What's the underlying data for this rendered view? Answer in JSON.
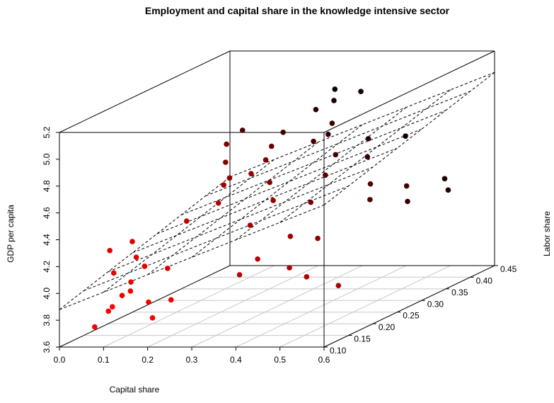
{
  "chart_data": {
    "type": "scatter3d",
    "title": "Employment and capital share in the knowledge intensive sector",
    "x_label": "Capital share",
    "y_label": "Labor share",
    "z_label": "GDP per capita",
    "x": [
      0.08,
      0.1,
      0.12,
      0.09,
      0.15,
      0.13,
      0.18,
      0.11,
      0.16,
      0.2,
      0.14,
      0.07,
      0.19,
      0.22,
      0.12,
      0.2,
      0.25,
      0.3,
      0.22,
      0.35,
      0.28,
      0.4,
      0.33,
      0.18,
      0.26,
      0.38,
      0.3,
      0.45,
      0.24,
      0.36,
      0.42,
      0.32,
      0.28,
      0.5,
      0.2,
      0.15,
      0.22,
      0.3,
      0.25,
      0.35,
      0.4,
      0.33,
      0.45,
      0.38,
      0.28,
      0.5,
      0.42,
      0.48,
      0.36,
      0.3,
      0.55,
      0.26,
      0.44,
      0.32,
      0.52
    ],
    "y": [
      0.1,
      0.11,
      0.12,
      0.13,
      0.11,
      0.14,
      0.12,
      0.15,
      0.13,
      0.11,
      0.12,
      0.14,
      0.15,
      0.13,
      0.1,
      0.18,
      0.2,
      0.22,
      0.25,
      0.19,
      0.27,
      0.21,
      0.24,
      0.28,
      0.3,
      0.23,
      0.26,
      0.2,
      0.22,
      0.29,
      0.25,
      0.18,
      0.24,
      0.22,
      0.26,
      0.34,
      0.36,
      0.38,
      0.4,
      0.35,
      0.37,
      0.42,
      0.33,
      0.39,
      0.41,
      0.36,
      0.43,
      0.38,
      0.32,
      0.35,
      0.4,
      0.43,
      0.34,
      0.37,
      0.42
    ],
    "z": [
      3.75,
      3.85,
      3.95,
      4.1,
      4.0,
      4.2,
      3.9,
      4.3,
      4.15,
      3.8,
      4.05,
      4.25,
      4.1,
      3.9,
      3.9,
      4.4,
      4.5,
      4.3,
      4.6,
      4.1,
      4.7,
      4.0,
      4.45,
      4.8,
      4.75,
      4.2,
      4.55,
      3.95,
      4.6,
      4.35,
      4.15,
      4.0,
      4.65,
      3.85,
      4.7,
      4.8,
      4.75,
      4.7,
      4.85,
      4.6,
      4.55,
      4.95,
      4.3,
      4.65,
      4.9,
      4.35,
      4.6,
      4.2,
      4.5,
      4.7,
      4.25,
      4.95,
      4.4,
      4.8,
      4.3
    ],
    "xlim": [
      0,
      0.6
    ],
    "xticks": [
      {
        "value": 0,
        "label": "0.0"
      },
      0.1,
      0.2,
      0.3,
      0.4,
      0.5,
      0.6
    ],
    "ylim": [
      0.1,
      0.45
    ],
    "yticks": [
      {
        "value": 0.1,
        "label": "0.10"
      },
      0.15,
      {
        "value": 0.2,
        "label": "0.20"
      },
      0.25,
      {
        "value": 0.3,
        "label": "0.30"
      },
      0.35,
      {
        "value": 0.4,
        "label": "0.40"
      },
      0.45
    ],
    "zlim": [
      3.6,
      5.2
    ],
    "zticks": [
      3.6,
      3.8,
      {
        "value": 4,
        "label": "4.0"
      },
      4.2,
      4.4,
      4.6,
      4.8,
      {
        "value": 5,
        "label": "5.0"
      },
      5.2
    ],
    "fit_plane": {
      "intercept": 3.77,
      "x": 1.3,
      "y": 1.09
    },
    "color_front": "#ff0000",
    "color_back": "#000000",
    "grid": true
  }
}
